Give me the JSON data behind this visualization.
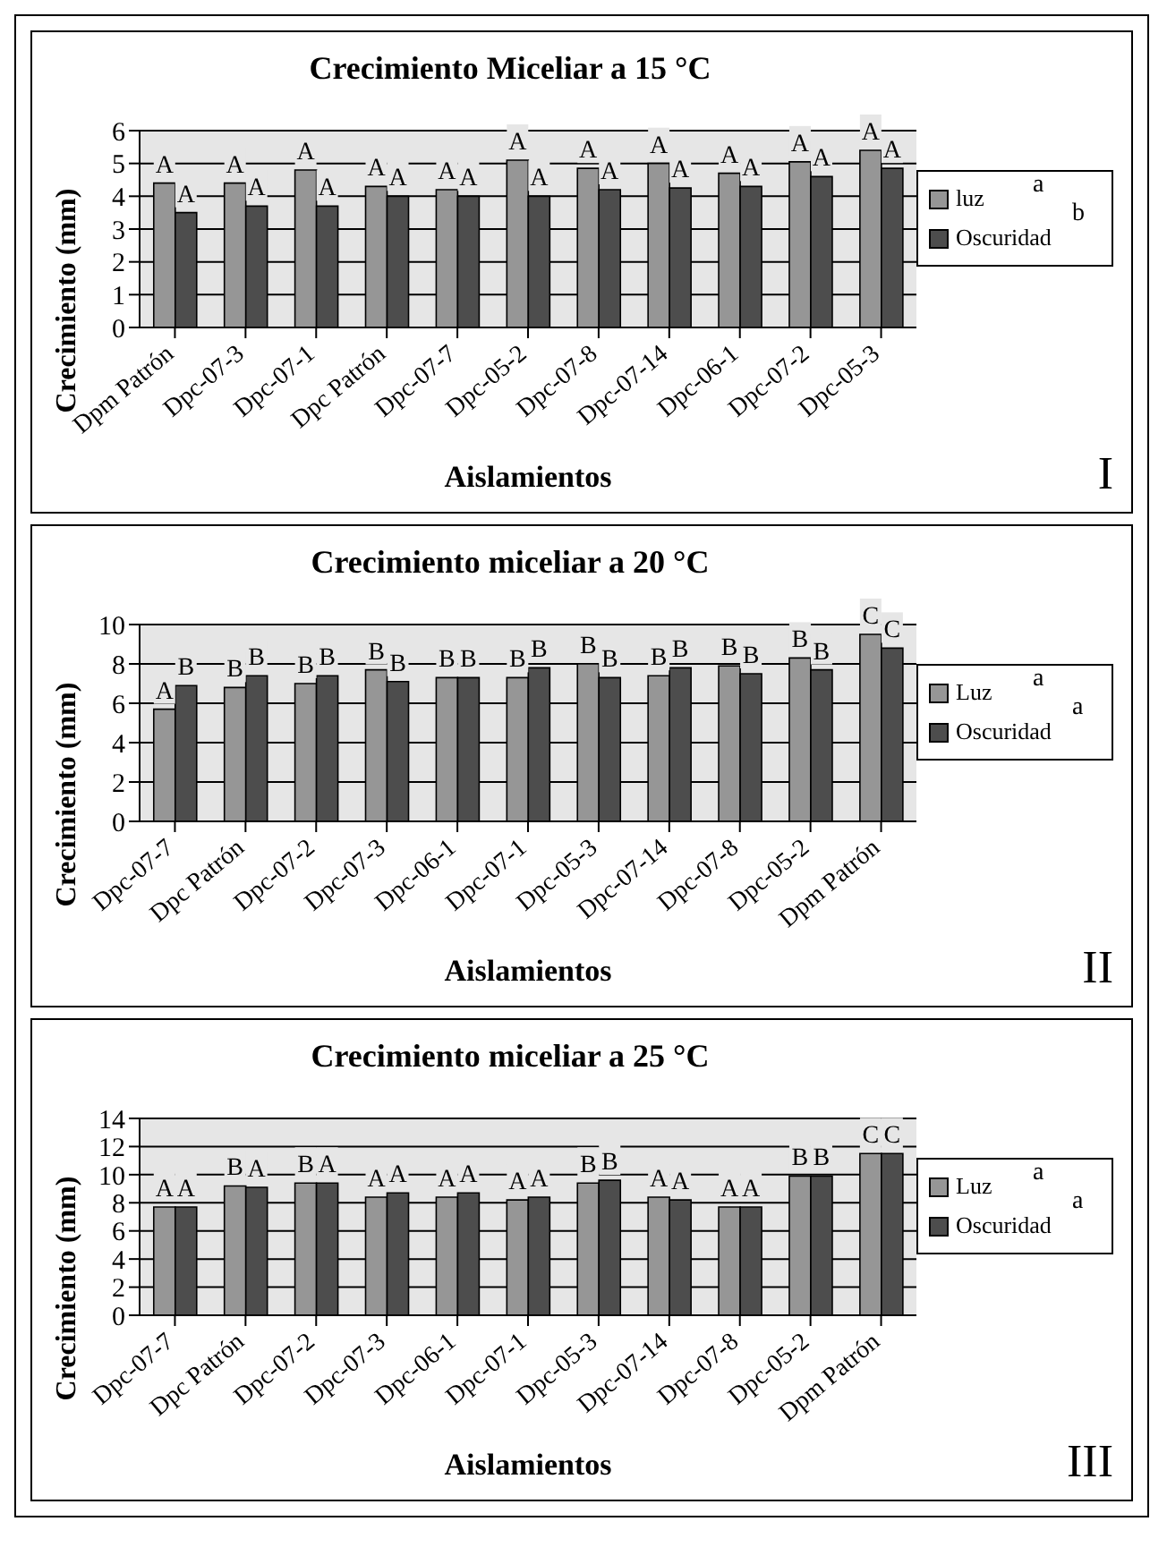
{
  "chart_data": [
    {
      "type": "bar",
      "title": "Crecimiento Miceliar a 15 °C",
      "xlabel": "Aislamientos",
      "ylabel": "Crecimiento (mm)",
      "categories": [
        "Dpm Patrón",
        "Dpc-07-3",
        "Dpc-07-1",
        "Dpc Patrón",
        "Dpc-07-7",
        "Dpc-05-2",
        "Dpc-07-8",
        "Dpc-07-14",
        "Dpc-06-1",
        "Dpc-07-2",
        "Dpc-05-3"
      ],
      "series": [
        {
          "name": "luz",
          "color": "#969696",
          "values": [
            4.4,
            4.4,
            4.8,
            4.3,
            4.2,
            5.1,
            4.85,
            5.0,
            4.7,
            5.05,
            5.4
          ],
          "value_labels": [
            "A",
            "A",
            "A",
            "A",
            "A",
            "A",
            "A",
            "A",
            "A",
            "A",
            "A"
          ]
        },
        {
          "name": "Oscuridad",
          "color": "#4d4d4d",
          "values": [
            3.5,
            3.7,
            3.7,
            4.0,
            4.0,
            4.0,
            4.2,
            4.25,
            4.3,
            4.6,
            4.85
          ],
          "value_labels": [
            "A",
            "A",
            "A",
            "A",
            "A",
            "A",
            "A",
            "A",
            "A",
            "A",
            "A"
          ]
        }
      ],
      "ylim": [
        0,
        6
      ],
      "yticks": [
        0,
        1,
        2,
        3,
        4,
        5,
        6
      ],
      "grid": "y",
      "legend": "right",
      "annotations": [
        "a",
        "b",
        "I"
      ]
    },
    {
      "type": "bar",
      "title": "Crecimiento miceliar a 20 °C",
      "xlabel": "Aislamientos",
      "ylabel": "Crecimiento (mm)",
      "categories": [
        "Dpc-07-7",
        "Dpc Patrón",
        "Dpc-07-2",
        "Dpc-07-3",
        "Dpc-06-1",
        "Dpc-07-1",
        "Dpc-05-3",
        "Dpc-07-14",
        "Dpc-07-8",
        "Dpc-05-2",
        "Dpm Patrón"
      ],
      "series": [
        {
          "name": "Luz",
          "color": "#969696",
          "values": [
            5.7,
            6.8,
            7.0,
            7.7,
            7.3,
            7.3,
            8.0,
            7.4,
            7.9,
            8.3,
            9.5
          ],
          "value_labels": [
            "A",
            "B",
            "B",
            "B",
            "B",
            "B",
            "B",
            "B",
            "B",
            "B",
            "C"
          ]
        },
        {
          "name": "Oscuridad",
          "color": "#4d4d4d",
          "values": [
            6.9,
            7.4,
            7.4,
            7.1,
            7.3,
            7.8,
            7.3,
            7.8,
            7.5,
            7.7,
            8.8
          ],
          "value_labels": [
            "B",
            "B",
            "B",
            "B",
            "B",
            "B",
            "B",
            "B",
            "B",
            "B",
            "C"
          ]
        }
      ],
      "ylim": [
        0,
        10
      ],
      "yticks": [
        0,
        2,
        4,
        6,
        8,
        10
      ],
      "grid": "y",
      "legend": "right",
      "annotations": [
        "a",
        "a",
        "II"
      ]
    },
    {
      "type": "bar",
      "title": "Crecimiento miceliar a 25 °C",
      "xlabel": "Aislamientos",
      "ylabel": "Crecimiento (mm)",
      "categories": [
        "Dpc-07-7",
        "Dpc Patrón",
        "Dpc-07-2",
        "Dpc-07-3",
        "Dpc-06-1",
        "Dpc-07-1",
        "Dpc-05-3",
        "Dpc-07-14",
        "Dpc-07-8",
        "Dpc-05-2",
        "Dpm Patrón"
      ],
      "series": [
        {
          "name": "Luz",
          "color": "#969696",
          "values": [
            7.7,
            9.2,
            9.4,
            8.4,
            8.4,
            8.2,
            9.4,
            8.4,
            7.7,
            9.9,
            11.5
          ],
          "value_labels": [
            "A",
            "B",
            "B",
            "A",
            "A",
            "A",
            "B",
            "A",
            "A",
            "B",
            "C"
          ]
        },
        {
          "name": "Oscuridad",
          "color": "#4d4d4d",
          "values": [
            7.7,
            9.1,
            9.4,
            8.7,
            8.7,
            8.4,
            9.6,
            8.2,
            7.7,
            9.9,
            11.5
          ],
          "value_labels": [
            "A",
            "A",
            "A",
            "A",
            "A",
            "A",
            "B",
            "A",
            "A",
            "B",
            "C"
          ]
        }
      ],
      "ylim": [
        0,
        14
      ],
      "yticks": [
        0,
        2,
        4,
        6,
        8,
        10,
        12,
        14
      ],
      "grid": "y",
      "legend": "right",
      "annotations": [
        "a",
        "a",
        "III"
      ]
    }
  ]
}
